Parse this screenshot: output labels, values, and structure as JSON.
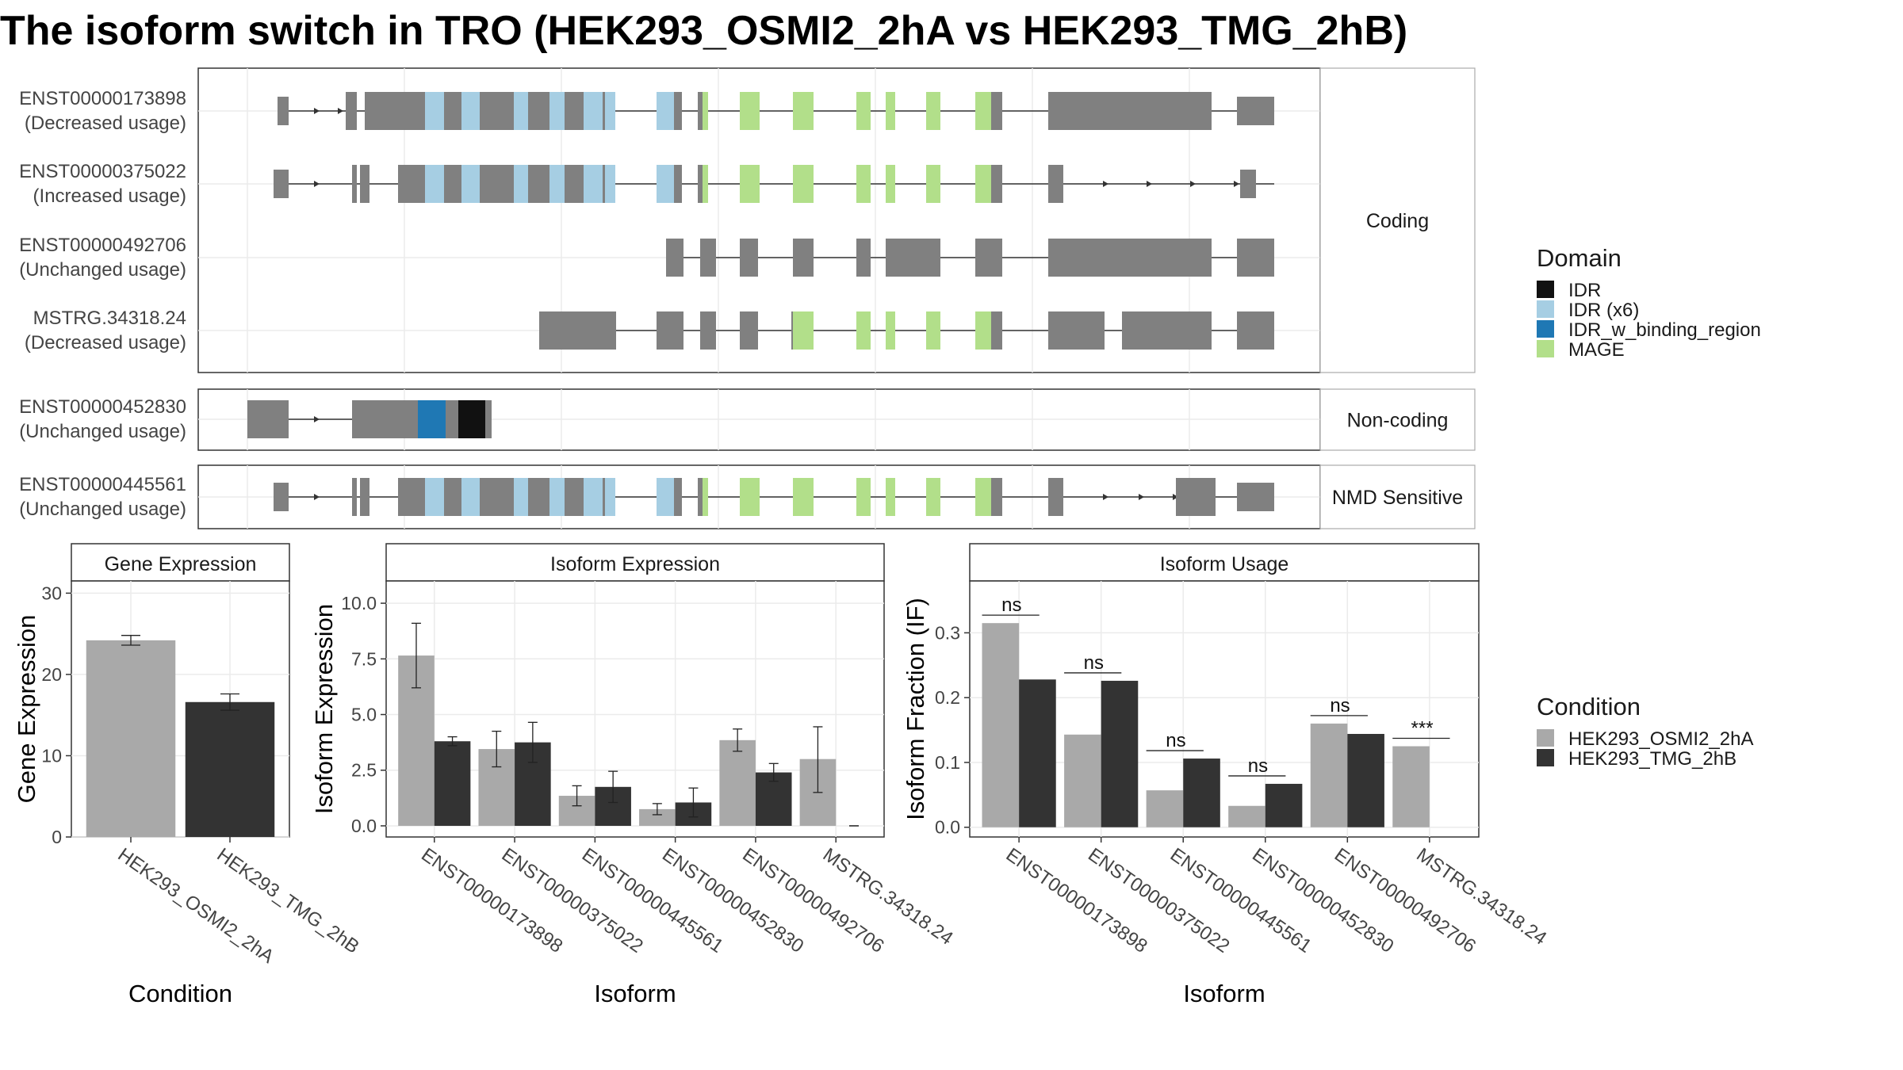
{
  "title": "The isoform switch in TRO (HEK293_OSMI2_2hA vs HEK293_TMG_2hB)",
  "colors": {
    "exon": "#808080",
    "IDR": "#111111",
    "IDR_x6": "#A6CEE3",
    "IDR_w_binding_region": "#1F78B4",
    "MAGE": "#B2DF8A",
    "cond_A": "#A9A9A9",
    "cond_B": "#333333",
    "grid": "#EBEBEB",
    "strip": "#FFFFFF"
  },
  "structure": {
    "facets": [
      {
        "label": "Coding",
        "transcripts": [
          {
            "id": "ENST00000173898",
            "usage": "(Decreased usage)"
          },
          {
            "id": "ENST00000375022",
            "usage": "(Increased usage)"
          },
          {
            "id": "ENST00000492706",
            "usage": "(Unchanged usage)"
          },
          {
            "id": "MSTRG.34318.24",
            "usage": "(Decreased usage)"
          }
        ]
      },
      {
        "label": "Non-coding",
        "transcripts": [
          {
            "id": "ENST00000452830",
            "usage": "(Unchanged usage)"
          }
        ]
      },
      {
        "label": "NMD Sensitive",
        "transcripts": [
          {
            "id": "ENST00000445561",
            "usage": "(Unchanged usage)"
          }
        ]
      }
    ]
  },
  "legend_domain": {
    "title": "Domain",
    "items": [
      {
        "label": "IDR",
        "color": "#111111"
      },
      {
        "label": "IDR (x6)",
        "color": "#A6CEE3"
      },
      {
        "label": "IDR_w_binding_region",
        "color": "#1F78B4"
      },
      {
        "label": "MAGE",
        "color": "#B2DF8A"
      }
    ]
  },
  "legend_condition": {
    "title": "Condition",
    "items": [
      {
        "label": "HEK293_OSMI2_2hA",
        "color": "#A9A9A9"
      },
      {
        "label": "HEK293_TMG_2hB",
        "color": "#333333"
      }
    ]
  },
  "chart_data": [
    {
      "type": "bar",
      "title": "Gene Expression",
      "xlabel": "Condition",
      "ylabel": "Gene Expression",
      "categories": [
        "HEK293_OSMI2_2hA",
        "HEK293_TMG_2hB"
      ],
      "values": [
        24.2,
        16.6
      ],
      "errors": [
        [
          23.6,
          24.8
        ],
        [
          15.6,
          17.6
        ]
      ],
      "ylim": [
        0,
        31.5
      ],
      "yticks": [
        0,
        10,
        20,
        30
      ]
    },
    {
      "type": "bar",
      "title": "Isoform Expression",
      "xlabel": "Isoform",
      "ylabel": "Isoform Expression",
      "categories": [
        "ENST00000173898",
        "ENST00000375022",
        "ENST00000445561",
        "ENST00000452830",
        "ENST00000492706",
        "MSTRG.34318.24"
      ],
      "series": [
        {
          "name": "HEK293_OSMI2_2hA",
          "values": [
            7.65,
            3.45,
            1.35,
            0.75,
            3.85,
            3.0
          ],
          "errors": [
            [
              6.2,
              9.1
            ],
            [
              2.65,
              4.25
            ],
            [
              0.9,
              1.8
            ],
            [
              0.5,
              1.0
            ],
            [
              3.35,
              4.35
            ],
            [
              1.5,
              4.45
            ]
          ]
        },
        {
          "name": "HEK293_TMG_2hB",
          "values": [
            3.8,
            3.75,
            1.75,
            1.05,
            2.4,
            0.0
          ],
          "errors": [
            [
              3.6,
              4.0
            ],
            [
              2.85,
              4.65
            ],
            [
              1.05,
              2.45
            ],
            [
              0.4,
              1.7
            ],
            [
              2.0,
              2.8
            ],
            [
              0.0,
              0.0
            ]
          ]
        }
      ],
      "ylim": [
        -0.5,
        11.0
      ],
      "yticks": [
        0.0,
        2.5,
        5.0,
        7.5,
        10.0
      ]
    },
    {
      "type": "bar",
      "title": "Isoform Usage",
      "xlabel": "Isoform",
      "ylabel": "Isoform Fraction (IF)",
      "categories": [
        "ENST00000173898",
        "ENST00000375022",
        "ENST00000445561",
        "ENST00000452830",
        "ENST00000492706",
        "MSTRG.34318.24"
      ],
      "series": [
        {
          "name": "HEK293_OSMI2_2hA",
          "values": [
            0.315,
            0.143,
            0.057,
            0.033,
            0.16,
            0.125
          ]
        },
        {
          "name": "HEK293_TMG_2hB",
          "values": [
            0.228,
            0.226,
            0.106,
            0.067,
            0.144,
            0.0
          ]
        }
      ],
      "significance": [
        "ns",
        "ns",
        "ns",
        "ns",
        "ns",
        "***"
      ],
      "ylim": [
        -0.015,
        0.38
      ],
      "yticks": [
        0.0,
        0.1,
        0.2,
        0.3
      ]
    }
  ]
}
